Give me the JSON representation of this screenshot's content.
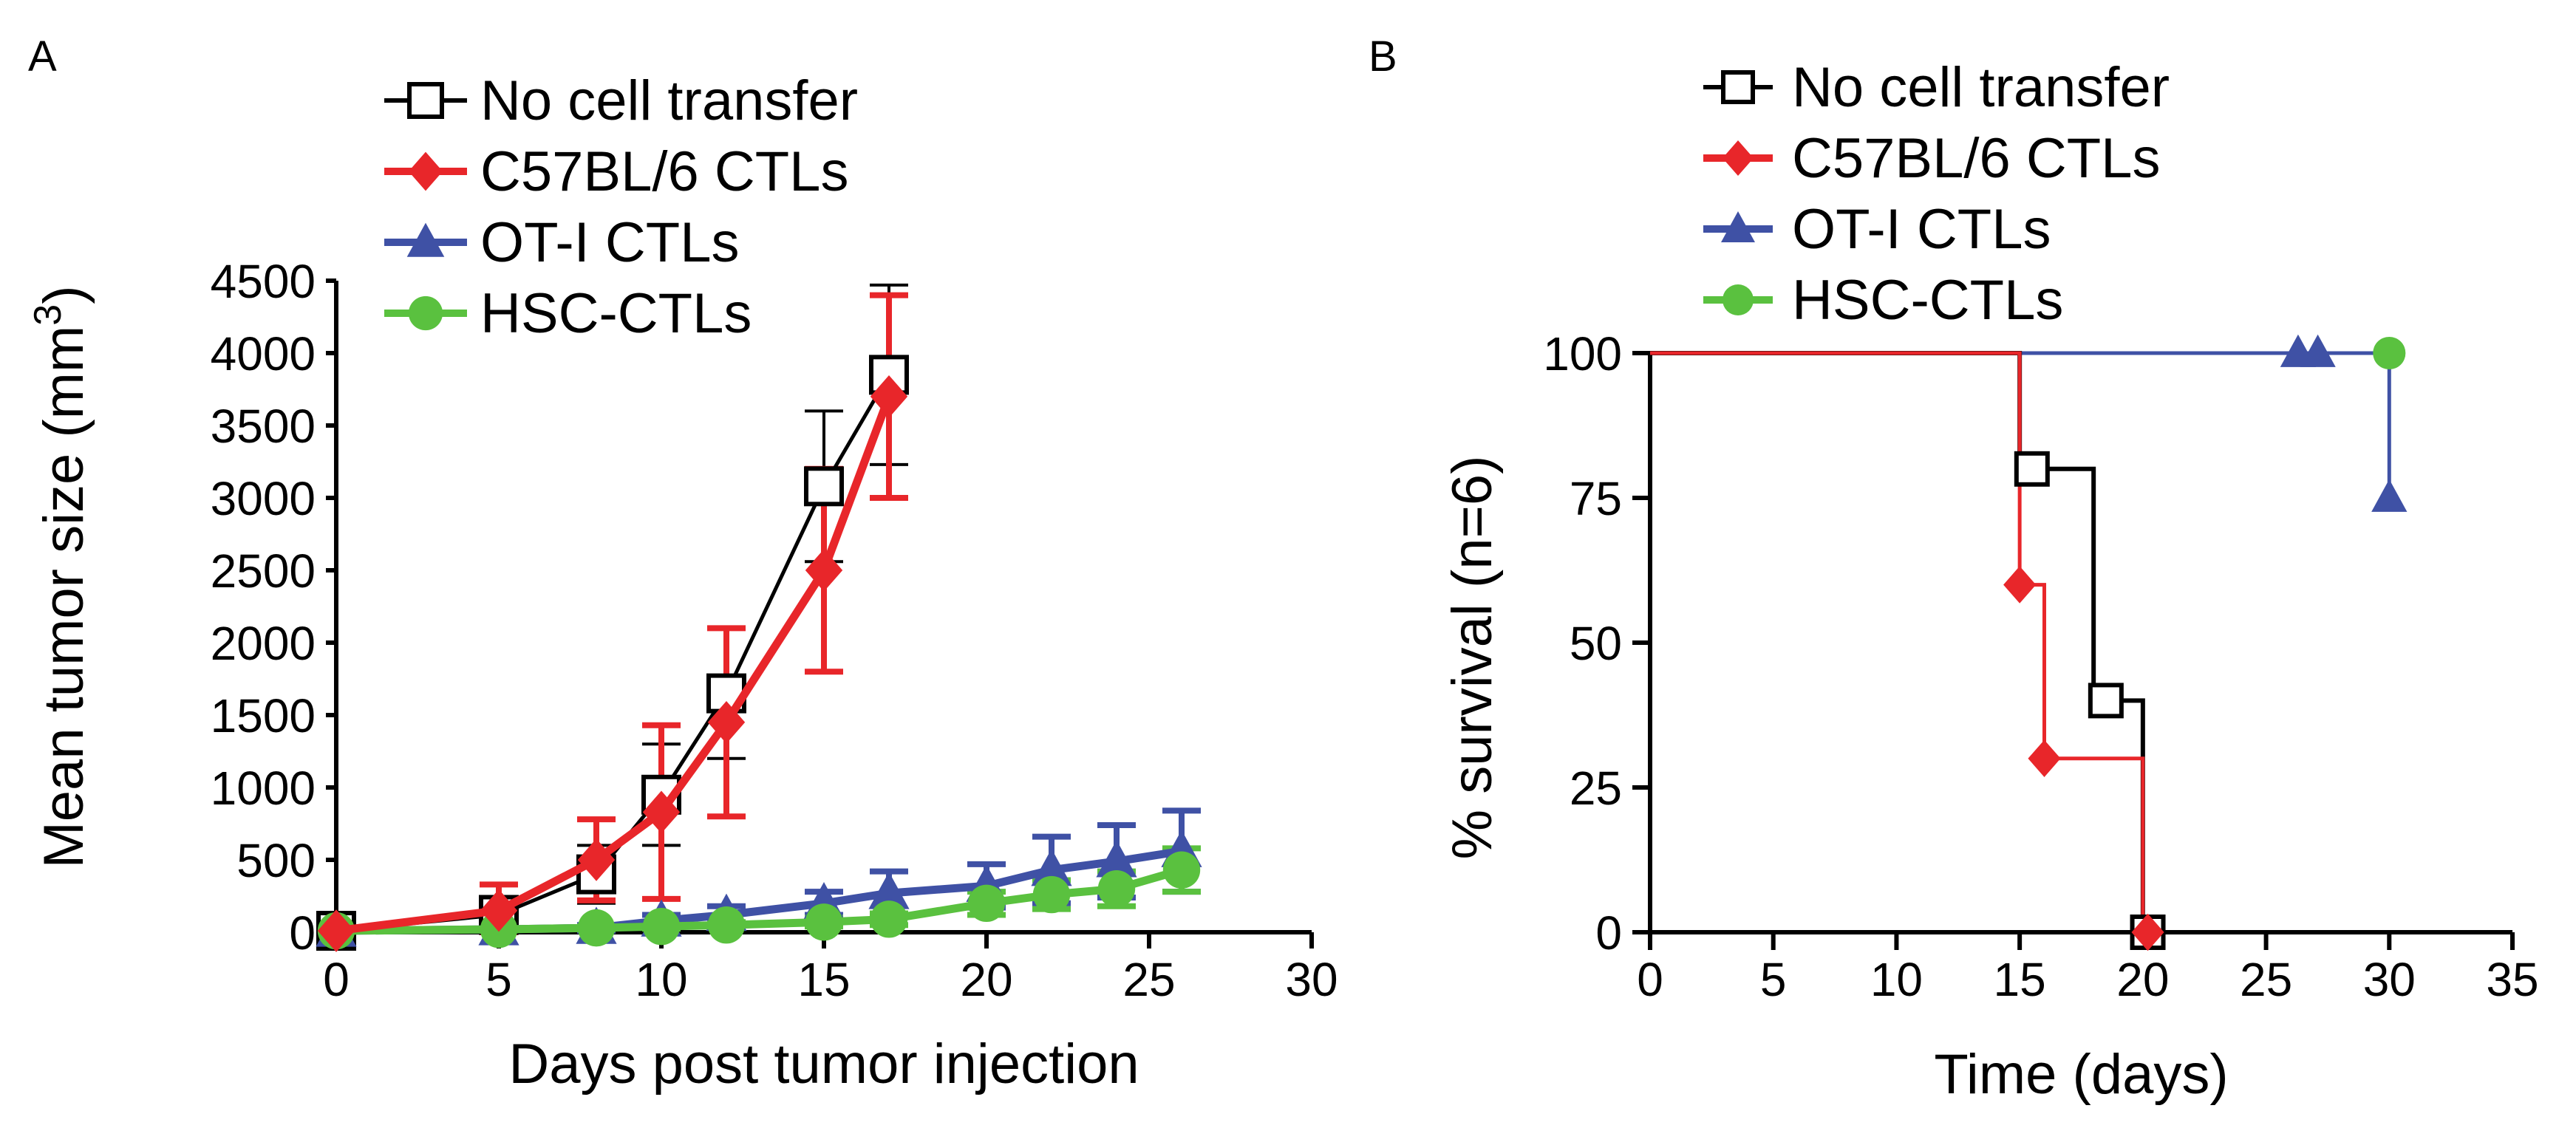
{
  "chart_data": [
    {
      "panel": "A",
      "type": "line",
      "title": "",
      "xlabel": "Days post tumor injection",
      "ylabel": "Mean tumor size (mm",
      "ylabel_sup": "3",
      "ylabel_close": ")",
      "xlim": [
        0,
        30
      ],
      "ylim": [
        0,
        4500
      ],
      "xticks": [
        0,
        5,
        10,
        15,
        20,
        25,
        30
      ],
      "yticks": [
        0,
        500,
        1000,
        1500,
        2000,
        2500,
        3000,
        3500,
        4000,
        4500
      ],
      "legend_position": "top-left",
      "series": [
        {
          "name": "No cell transfer",
          "color": "#000000",
          "marker": "square-open",
          "x": [
            0,
            5,
            8,
            10,
            12,
            15,
            17
          ],
          "y": [
            10,
            120,
            400,
            950,
            1650,
            3080,
            3850
          ],
          "err": [
            10,
            80,
            200,
            350,
            450,
            520,
            620
          ]
        },
        {
          "name": "C57BL/6 CTLs",
          "color": "#e8262a",
          "marker": "diamond",
          "x": [
            0,
            5,
            8,
            10,
            12,
            15,
            17
          ],
          "y": [
            10,
            150,
            500,
            830,
            1450,
            2500,
            3700
          ],
          "err": [
            10,
            180,
            280,
            600,
            650,
            700,
            700
          ]
        },
        {
          "name": "OT-I CTLs",
          "color": "#3f51a5",
          "marker": "triangle",
          "x": [
            0,
            5,
            8,
            10,
            12,
            15,
            17,
            20,
            22,
            24,
            26
          ],
          "y": [
            10,
            20,
            30,
            80,
            120,
            200,
            270,
            320,
            430,
            490,
            560
          ],
          "err": [
            10,
            15,
            20,
            40,
            60,
            80,
            150,
            150,
            230,
            250,
            280
          ]
        },
        {
          "name": "HSC-CTLs",
          "color": "#5ac13f",
          "marker": "circle",
          "x": [
            0,
            5,
            8,
            10,
            12,
            15,
            17,
            20,
            22,
            24,
            26
          ],
          "y": [
            10,
            20,
            30,
            40,
            50,
            70,
            90,
            200,
            260,
            300,
            430
          ],
          "err": [
            5,
            10,
            10,
            15,
            20,
            30,
            40,
            80,
            100,
            120,
            150
          ]
        }
      ]
    },
    {
      "panel": "B",
      "type": "line",
      "title": "",
      "xlabel": "Time (days)",
      "ylabel": "% survival (n=6)",
      "xlim": [
        0,
        35
      ],
      "ylim": [
        0,
        100
      ],
      "xticks": [
        0,
        5,
        10,
        15,
        20,
        25,
        30,
        35
      ],
      "yticks": [
        0,
        25,
        50,
        75,
        100
      ],
      "legend_position": "top-left",
      "series": [
        {
          "name": "No cell transfer",
          "color": "#000000",
          "marker": "square-open",
          "step_x": [
            0,
            15,
            15,
            18,
            18,
            20,
            20
          ],
          "step_y": [
            100,
            100,
            80,
            80,
            40,
            40,
            0
          ],
          "marker_x": [
            15.5,
            18.5,
            20.2
          ],
          "marker_y": [
            80,
            40,
            0
          ]
        },
        {
          "name": "C57BL/6 CTLs",
          "color": "#e8262a",
          "marker": "diamond",
          "step_x": [
            0,
            15,
            15,
            16,
            16,
            20,
            20
          ],
          "step_y": [
            100,
            100,
            60,
            60,
            30,
            30,
            0
          ],
          "marker_x": [
            15,
            16,
            20.2
          ],
          "marker_y": [
            60,
            30,
            0
          ]
        },
        {
          "name": "OT-I CTLs",
          "color": "#3f51a5",
          "marker": "triangle",
          "step_x": [
            0,
            30,
            30
          ],
          "step_y": [
            100,
            100,
            75
          ],
          "marker_x": [
            26.3,
            27.1,
            30
          ],
          "marker_y": [
            100,
            100,
            75
          ]
        },
        {
          "name": "HSC-CTLs",
          "color": "#5ac13f",
          "marker": "circle",
          "step_x": [
            0,
            30
          ],
          "step_y": [
            100,
            100
          ],
          "marker_x": [
            30
          ],
          "marker_y": [
            100
          ]
        }
      ]
    }
  ]
}
